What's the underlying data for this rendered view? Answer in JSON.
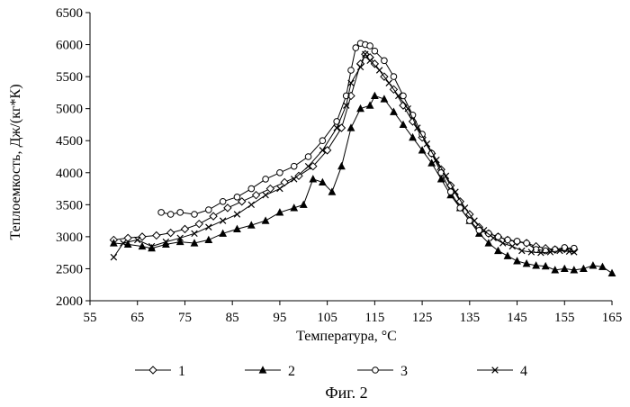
{
  "chart_data": {
    "type": "line",
    "xlabel": "Температура, °C",
    "ylabel": "Теплоемкость, Дж/(кг*К)",
    "caption": "Фиг. 2",
    "xlim": [
      55,
      165
    ],
    "ylim": [
      2000,
      6500
    ],
    "xticks": [
      "55",
      "65",
      "75",
      "85",
      "95",
      "105",
      "115",
      "125",
      "135",
      "145",
      "155",
      "165"
    ],
    "yticks": [
      "2000",
      "2500",
      "3000",
      "3500",
      "4000",
      "4500",
      "5000",
      "5500",
      "6000",
      "6500"
    ],
    "legend_position": "bottom",
    "series": [
      {
        "name": "1",
        "marker": "diamond-open",
        "color": "#000000",
        "points": [
          [
            60,
            2950
          ],
          [
            63,
            2980
          ],
          [
            66,
            3000
          ],
          [
            69,
            3020
          ],
          [
            72,
            3060
          ],
          [
            75,
            3120
          ],
          [
            78,
            3200
          ],
          [
            81,
            3320
          ],
          [
            84,
            3450
          ],
          [
            87,
            3550
          ],
          [
            90,
            3650
          ],
          [
            93,
            3750
          ],
          [
            96,
            3850
          ],
          [
            99,
            3950
          ],
          [
            102,
            4100
          ],
          [
            105,
            4350
          ],
          [
            108,
            4700
          ],
          [
            110,
            5200
          ],
          [
            112,
            5700
          ],
          [
            113,
            5850
          ],
          [
            114,
            5800
          ],
          [
            115,
            5700
          ],
          [
            117,
            5500
          ],
          [
            119,
            5300
          ],
          [
            121,
            5050
          ],
          [
            123,
            4800
          ],
          [
            125,
            4550
          ],
          [
            127,
            4300
          ],
          [
            129,
            4050
          ],
          [
            131,
            3800
          ],
          [
            133,
            3550
          ],
          [
            135,
            3350
          ],
          [
            137,
            3150
          ],
          [
            139,
            3050
          ],
          [
            141,
            3000
          ],
          [
            143,
            2950
          ],
          [
            145,
            2920
          ],
          [
            147,
            2900
          ],
          [
            149,
            2850
          ],
          [
            151,
            2820
          ],
          [
            153,
            2800
          ],
          [
            155,
            2810
          ],
          [
            157,
            2800
          ]
        ]
      },
      {
        "name": "2",
        "marker": "triangle-filled",
        "color": "#000000",
        "points": [
          [
            60,
            2900
          ],
          [
            63,
            2880
          ],
          [
            66,
            2850
          ],
          [
            68,
            2820
          ],
          [
            71,
            2880
          ],
          [
            74,
            2920
          ],
          [
            77,
            2900
          ],
          [
            80,
            2950
          ],
          [
            83,
            3050
          ],
          [
            86,
            3120
          ],
          [
            89,
            3180
          ],
          [
            92,
            3250
          ],
          [
            95,
            3380
          ],
          [
            98,
            3450
          ],
          [
            100,
            3500
          ],
          [
            102,
            3900
          ],
          [
            104,
            3850
          ],
          [
            106,
            3700
          ],
          [
            108,
            4100
          ],
          [
            110,
            4700
          ],
          [
            112,
            5000
          ],
          [
            114,
            5050
          ],
          [
            115,
            5200
          ],
          [
            117,
            5150
          ],
          [
            119,
            4950
          ],
          [
            121,
            4750
          ],
          [
            123,
            4550
          ],
          [
            125,
            4350
          ],
          [
            127,
            4150
          ],
          [
            129,
            3900
          ],
          [
            131,
            3650
          ],
          [
            133,
            3450
          ],
          [
            135,
            3250
          ],
          [
            137,
            3050
          ],
          [
            139,
            2900
          ],
          [
            141,
            2780
          ],
          [
            143,
            2700
          ],
          [
            145,
            2620
          ],
          [
            147,
            2580
          ],
          [
            149,
            2550
          ],
          [
            151,
            2540
          ],
          [
            153,
            2480
          ],
          [
            155,
            2500
          ],
          [
            157,
            2480
          ],
          [
            159,
            2500
          ],
          [
            161,
            2550
          ],
          [
            163,
            2530
          ],
          [
            165,
            2430
          ]
        ]
      },
      {
        "name": "3",
        "marker": "circle-open",
        "color": "#000000",
        "points": [
          [
            70,
            3380
          ],
          [
            72,
            3350
          ],
          [
            74,
            3380
          ],
          [
            77,
            3350
          ],
          [
            80,
            3420
          ],
          [
            83,
            3550
          ],
          [
            86,
            3620
          ],
          [
            89,
            3750
          ],
          [
            92,
            3900
          ],
          [
            95,
            4000
          ],
          [
            98,
            4100
          ],
          [
            101,
            4250
          ],
          [
            104,
            4500
          ],
          [
            107,
            4800
          ],
          [
            109,
            5200
          ],
          [
            110,
            5600
          ],
          [
            111,
            5950
          ],
          [
            112,
            6020
          ],
          [
            113,
            6000
          ],
          [
            114,
            5980
          ],
          [
            115,
            5900
          ],
          [
            117,
            5750
          ],
          [
            119,
            5500
          ],
          [
            121,
            5200
          ],
          [
            123,
            4900
          ],
          [
            125,
            4600
          ],
          [
            127,
            4300
          ],
          [
            129,
            4000
          ],
          [
            131,
            3700
          ],
          [
            133,
            3450
          ],
          [
            135,
            3250
          ],
          [
            137,
            3100
          ],
          [
            139,
            3050
          ],
          [
            141,
            3000
          ],
          [
            143,
            2950
          ],
          [
            145,
            2930
          ],
          [
            147,
            2900
          ],
          [
            149,
            2800
          ],
          [
            151,
            2780
          ],
          [
            153,
            2800
          ],
          [
            155,
            2830
          ],
          [
            157,
            2820
          ]
        ]
      },
      {
        "name": "4",
        "marker": "x",
        "color": "#000000",
        "points": [
          [
            60,
            2680
          ],
          [
            62,
            2900
          ],
          [
            65,
            2950
          ],
          [
            68,
            2850
          ],
          [
            71,
            2920
          ],
          [
            74,
            2980
          ],
          [
            77,
            3050
          ],
          [
            80,
            3150
          ],
          [
            83,
            3250
          ],
          [
            86,
            3350
          ],
          [
            89,
            3500
          ],
          [
            92,
            3650
          ],
          [
            95,
            3750
          ],
          [
            98,
            3900
          ],
          [
            101,
            4100
          ],
          [
            104,
            4350
          ],
          [
            107,
            4700
          ],
          [
            109,
            5050
          ],
          [
            110,
            5400
          ],
          [
            112,
            5650
          ],
          [
            113,
            5850
          ],
          [
            114,
            5750
          ],
          [
            116,
            5600
          ],
          [
            118,
            5400
          ],
          [
            120,
            5200
          ],
          [
            122,
            5000
          ],
          [
            124,
            4700
          ],
          [
            126,
            4450
          ],
          [
            128,
            4200
          ],
          [
            130,
            3950
          ],
          [
            132,
            3700
          ],
          [
            134,
            3450
          ],
          [
            136,
            3250
          ],
          [
            138,
            3100
          ],
          [
            140,
            2980
          ],
          [
            142,
            2900
          ],
          [
            144,
            2850
          ],
          [
            146,
            2780
          ],
          [
            148,
            2760
          ],
          [
            150,
            2750
          ],
          [
            152,
            2760
          ],
          [
            154,
            2780
          ],
          [
            156,
            2770
          ],
          [
            157,
            2760
          ]
        ]
      }
    ]
  }
}
